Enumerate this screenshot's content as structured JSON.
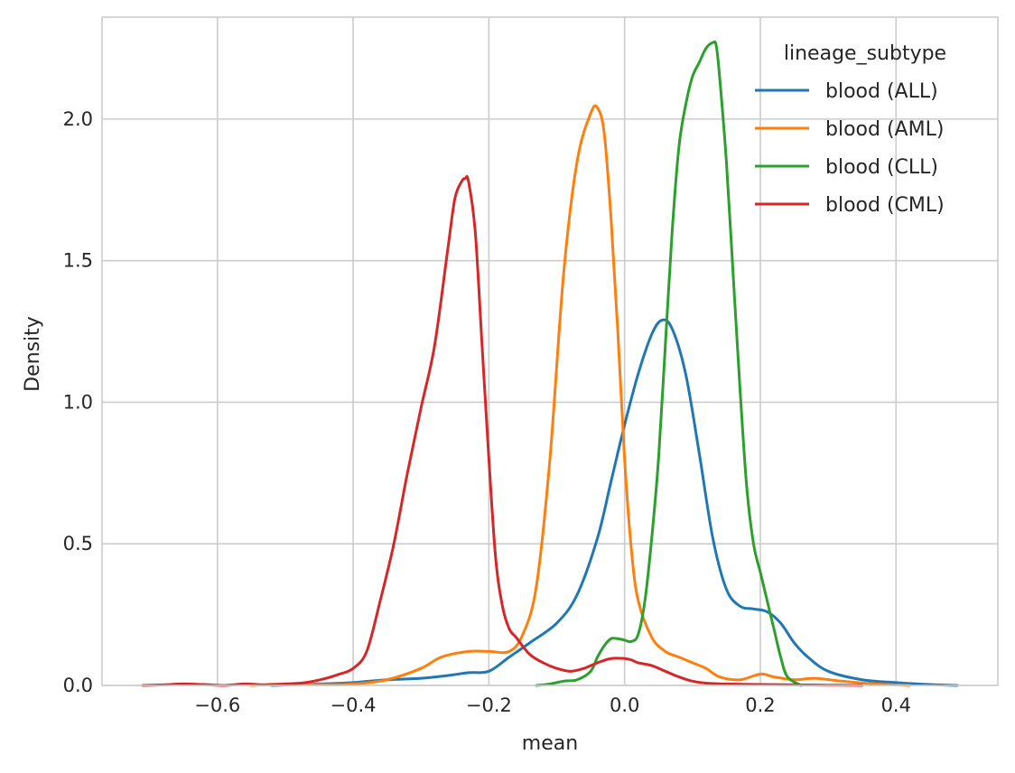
{
  "chart_data": {
    "type": "line",
    "xlabel": "mean",
    "ylabel": "Density",
    "xlim": [
      -0.77,
      0.55
    ],
    "ylim": [
      0,
      2.36
    ],
    "xticks": [
      -0.6,
      -0.4,
      -0.2,
      0.0,
      0.2,
      0.4
    ],
    "xtick_labels": [
      "−0.6",
      "−0.4",
      "−0.2",
      "0.0",
      "0.2",
      "0.4"
    ],
    "yticks": [
      0.0,
      0.5,
      1.0,
      1.5,
      2.0
    ],
    "ytick_labels": [
      "0.0",
      "0.5",
      "1.0",
      "1.5",
      "2.0"
    ],
    "grid": true,
    "legend": {
      "title": "lineage_subtype",
      "placement": "top-right"
    },
    "series": [
      {
        "name": "blood (ALL)",
        "color": "#1f77b4",
        "x": [
          -0.52,
          -0.45,
          -0.4,
          -0.35,
          -0.3,
          -0.26,
          -0.23,
          -0.2,
          -0.17,
          -0.14,
          -0.1,
          -0.07,
          -0.04,
          -0.02,
          0.0,
          0.02,
          0.04,
          0.055,
          0.07,
          0.09,
          0.11,
          0.13,
          0.15,
          0.17,
          0.19,
          0.21,
          0.23,
          0.25,
          0.27,
          0.3,
          0.35,
          0.4,
          0.45,
          0.49
        ],
        "y": [
          0.0,
          0.005,
          0.01,
          0.02,
          0.025,
          0.035,
          0.045,
          0.05,
          0.1,
          0.15,
          0.22,
          0.32,
          0.52,
          0.72,
          0.92,
          1.1,
          1.24,
          1.29,
          1.26,
          1.1,
          0.82,
          0.52,
          0.34,
          0.28,
          0.27,
          0.26,
          0.22,
          0.15,
          0.1,
          0.05,
          0.02,
          0.01,
          0.003,
          0.0
        ]
      },
      {
        "name": "blood (AML)",
        "color": "#ff7f0e",
        "x": [
          -0.55,
          -0.5,
          -0.45,
          -0.4,
          -0.35,
          -0.3,
          -0.27,
          -0.23,
          -0.2,
          -0.17,
          -0.15,
          -0.13,
          -0.11,
          -0.09,
          -0.07,
          -0.05,
          -0.04,
          -0.03,
          -0.02,
          -0.01,
          0.0,
          0.01,
          0.02,
          0.04,
          0.06,
          0.08,
          0.1,
          0.12,
          0.14,
          0.17,
          0.2,
          0.22,
          0.25,
          0.28,
          0.32,
          0.37,
          0.42
        ],
        "y": [
          0.0,
          0.005,
          0.003,
          0.005,
          0.02,
          0.06,
          0.1,
          0.12,
          0.12,
          0.12,
          0.18,
          0.35,
          0.8,
          1.45,
          1.85,
          2.02,
          2.04,
          1.95,
          1.65,
          1.25,
          0.8,
          0.48,
          0.3,
          0.17,
          0.12,
          0.1,
          0.08,
          0.06,
          0.03,
          0.02,
          0.04,
          0.03,
          0.02,
          0.025,
          0.015,
          0.005,
          0.0
        ]
      },
      {
        "name": "blood (CLL)",
        "color": "#2ca02c",
        "x": [
          -0.13,
          -0.11,
          -0.09,
          -0.07,
          -0.05,
          -0.04,
          -0.03,
          -0.02,
          -0.01,
          0.0,
          0.01,
          0.02,
          0.03,
          0.04,
          0.05,
          0.06,
          0.07,
          0.08,
          0.09,
          0.1,
          0.11,
          0.12,
          0.13,
          0.135,
          0.14,
          0.15,
          0.16,
          0.17,
          0.18,
          0.19,
          0.2,
          0.21,
          0.22,
          0.23,
          0.24,
          0.26
        ],
        "y": [
          0.0,
          0.005,
          0.015,
          0.02,
          0.05,
          0.1,
          0.14,
          0.165,
          0.165,
          0.16,
          0.155,
          0.18,
          0.3,
          0.52,
          0.8,
          1.2,
          1.6,
          1.9,
          2.05,
          2.15,
          2.2,
          2.25,
          2.27,
          2.26,
          2.15,
          1.85,
          1.45,
          1.05,
          0.7,
          0.5,
          0.4,
          0.3,
          0.2,
          0.1,
          0.03,
          0.0
        ]
      },
      {
        "name": "blood (CML)",
        "color": "#d62728",
        "x": [
          -0.71,
          -0.68,
          -0.65,
          -0.62,
          -0.59,
          -0.56,
          -0.53,
          -0.5,
          -0.47,
          -0.44,
          -0.42,
          -0.4,
          -0.38,
          -0.36,
          -0.34,
          -0.32,
          -0.3,
          -0.28,
          -0.26,
          -0.25,
          -0.24,
          -0.235,
          -0.23,
          -0.22,
          -0.21,
          -0.2,
          -0.19,
          -0.18,
          -0.17,
          -0.16,
          -0.14,
          -0.12,
          -0.1,
          -0.08,
          -0.06,
          -0.04,
          -0.02,
          0.0,
          0.01,
          0.02,
          0.04,
          0.06,
          0.08,
          0.1,
          0.12,
          0.15,
          0.2,
          0.25,
          0.3,
          0.35
        ],
        "y": [
          0.0,
          0.002,
          0.005,
          0.003,
          0.0,
          0.005,
          0.002,
          0.005,
          0.01,
          0.025,
          0.04,
          0.06,
          0.12,
          0.3,
          0.5,
          0.75,
          0.98,
          1.2,
          1.55,
          1.72,
          1.78,
          1.79,
          1.78,
          1.6,
          1.2,
          0.8,
          0.45,
          0.28,
          0.2,
          0.17,
          0.11,
          0.08,
          0.06,
          0.05,
          0.06,
          0.08,
          0.095,
          0.095,
          0.09,
          0.08,
          0.07,
          0.05,
          0.03,
          0.015,
          0.008,
          0.005,
          0.003,
          0.002,
          0.001,
          0.0
        ]
      }
    ]
  }
}
